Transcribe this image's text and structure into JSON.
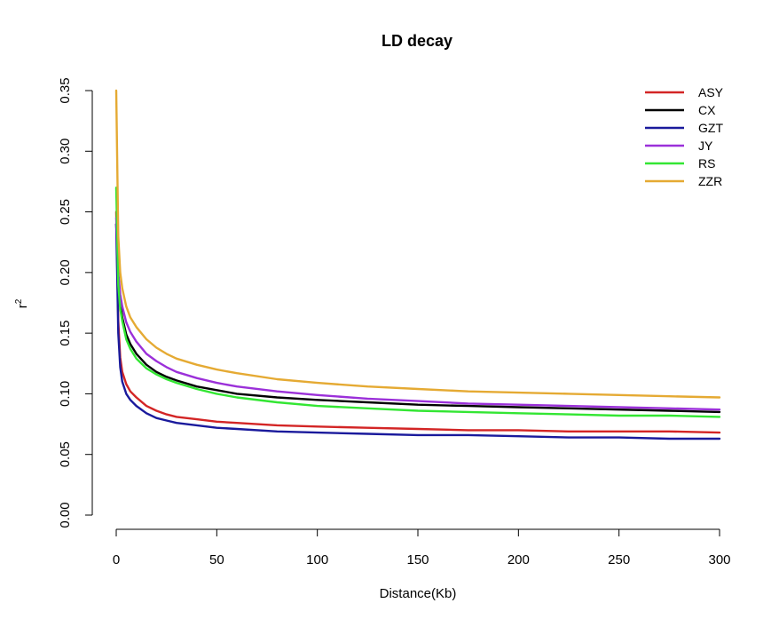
{
  "chart_data": {
    "type": "line",
    "title": "LD decay",
    "xlabel": "Distance(Kb)",
    "ylabel": "r",
    "ylabel_superscript": "2",
    "xlim": [
      0,
      300
    ],
    "ylim": [
      0,
      0.35
    ],
    "x_ticks": [
      "0",
      "50",
      "100",
      "150",
      "200",
      "250",
      "300"
    ],
    "y_ticks": [
      "0.00",
      "0.05",
      "0.10",
      "0.15",
      "0.20",
      "0.25",
      "0.30",
      "0.35"
    ],
    "grid": false,
    "legend_position": "top-right",
    "x": [
      0,
      1,
      2,
      3,
      5,
      7,
      10,
      15,
      20,
      25,
      30,
      40,
      50,
      60,
      80,
      100,
      125,
      150,
      175,
      200,
      225,
      250,
      275,
      300
    ],
    "series": [
      {
        "name": "ASY",
        "color": "#d32525",
        "values": [
          0.25,
          0.16,
          0.13,
          0.118,
          0.108,
          0.102,
          0.097,
          0.09,
          0.086,
          0.083,
          0.081,
          0.079,
          0.077,
          0.076,
          0.074,
          0.073,
          0.072,
          0.071,
          0.07,
          0.07,
          0.069,
          0.069,
          0.069,
          0.068
        ]
      },
      {
        "name": "CX",
        "color": "#000000",
        "values": [
          0.24,
          0.195,
          0.175,
          0.163,
          0.149,
          0.141,
          0.133,
          0.124,
          0.118,
          0.114,
          0.111,
          0.106,
          0.103,
          0.1,
          0.097,
          0.095,
          0.093,
          0.091,
          0.09,
          0.089,
          0.088,
          0.087,
          0.086,
          0.085
        ]
      },
      {
        "name": "GZT",
        "color": "#1a1a9c",
        "values": [
          0.24,
          0.15,
          0.122,
          0.11,
          0.1,
          0.095,
          0.09,
          0.084,
          0.08,
          0.078,
          0.076,
          0.074,
          0.072,
          0.071,
          0.069,
          0.068,
          0.067,
          0.066,
          0.066,
          0.065,
          0.064,
          0.064,
          0.063,
          0.063
        ]
      },
      {
        "name": "JY",
        "color": "#9b30d9",
        "values": [
          0.245,
          0.2,
          0.182,
          0.172,
          0.159,
          0.151,
          0.143,
          0.133,
          0.127,
          0.122,
          0.118,
          0.113,
          0.109,
          0.106,
          0.102,
          0.099,
          0.096,
          0.094,
          0.092,
          0.091,
          0.09,
          0.089,
          0.088,
          0.087
        ]
      },
      {
        "name": "RS",
        "color": "#33e633",
        "values": [
          0.27,
          0.19,
          0.17,
          0.16,
          0.145,
          0.137,
          0.129,
          0.121,
          0.116,
          0.112,
          0.109,
          0.104,
          0.1,
          0.097,
          0.093,
          0.09,
          0.088,
          0.086,
          0.085,
          0.084,
          0.083,
          0.082,
          0.082,
          0.081
        ]
      },
      {
        "name": "ZZR",
        "color": "#e5aa33",
        "values": [
          0.35,
          0.23,
          0.2,
          0.187,
          0.172,
          0.163,
          0.155,
          0.145,
          0.138,
          0.133,
          0.129,
          0.124,
          0.12,
          0.117,
          0.112,
          0.109,
          0.106,
          0.104,
          0.102,
          0.101,
          0.1,
          0.099,
          0.098,
          0.097
        ]
      }
    ]
  }
}
